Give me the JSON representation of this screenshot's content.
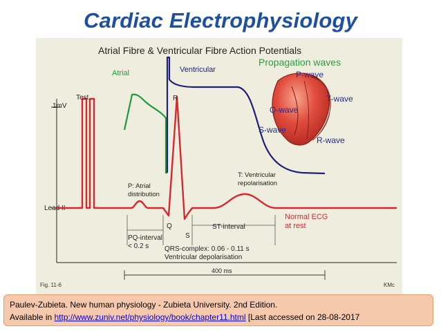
{
  "slide": {
    "title": "Cardiac Electrophysiology"
  },
  "figure": {
    "heading": "Atrial Fibre & Ventricular Fibre Action Potentials",
    "propagation_title": "Propagation waves",
    "labels": {
      "atrial": "Atrial",
      "ventricular": "Ventricular",
      "test": "Test",
      "one_mv": "1mV",
      "lead_ii": "Lead II",
      "r": "R",
      "q": "Q",
      "s": "S",
      "p_atrial_line1": "P: Atrial",
      "p_atrial_line2": "distribution",
      "t_ventricular_line1": "T: Ventricular",
      "t_ventricular_line2": "repolarisation",
      "st_interval": "ST-interval",
      "pq_interval_line1": "PQ-interval",
      "pq_interval_line2": "< 0.2 s",
      "qrs_line1": "QRS-complex: 0.06 - 0.11 s",
      "qrs_line2": "Ventricular depolarisation",
      "normal_ecg_line1": "Normal ECG",
      "normal_ecg_line2": "at rest",
      "scale_400ms": "400 ms",
      "fig_number": "Fig. 11-6",
      "kmc": "KMc"
    },
    "heart_waves": {
      "p_wave": "P-wave",
      "t_wave": "T-wave",
      "q_wave": "Q-wave",
      "s_wave": "S-wave",
      "r_wave": "R-wave"
    },
    "colors": {
      "atrial_trace": "#1f9a3a",
      "ventricular_trace": "#1b1f7a",
      "ecg_trace": "#d8262e",
      "propagation_text": "#2e9d3f",
      "heart_fill": "#d8453b",
      "wave_text": "#1f2c8f"
    }
  },
  "citation": {
    "line1": "Paulev-Zubieta. New human physiology - Zubieta University. 2nd Edition.",
    "line2_prefix": "Available in ",
    "link_text": "http://www.zuniv.net/physiology/book/chapter11.html",
    "line2_suffix": " [Last accessed on 28-08-2017"
  }
}
